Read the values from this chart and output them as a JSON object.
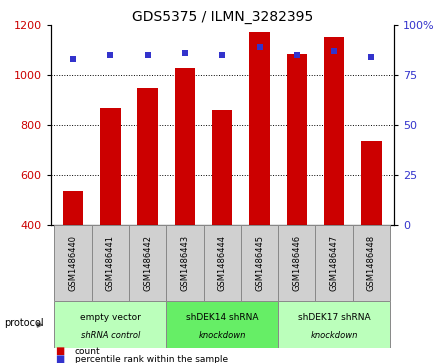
{
  "title": "GDS5375 / ILMN_3282395",
  "samples": [
    "GSM1486440",
    "GSM1486441",
    "GSM1486442",
    "GSM1486443",
    "GSM1486444",
    "GSM1486445",
    "GSM1486446",
    "GSM1486447",
    "GSM1486448"
  ],
  "counts": [
    535,
    868,
    950,
    1030,
    860,
    1175,
    1085,
    1155,
    735
  ],
  "percentiles": [
    83,
    85,
    85,
    86,
    85,
    89,
    85,
    87,
    84
  ],
  "ylim_left": [
    400,
    1200
  ],
  "ylim_right": [
    0,
    100
  ],
  "yticks_left": [
    400,
    600,
    800,
    1000,
    1200
  ],
  "yticks_right": [
    0,
    25,
    50,
    75,
    100
  ],
  "bar_color": "#cc0000",
  "dot_color": "#3333cc",
  "bar_bottom": 400,
  "bar_width": 0.55,
  "groups": [
    {
      "label": "empty vector\nshRNA control",
      "start": 0,
      "end": 3,
      "color": "#bbffbb"
    },
    {
      "label": "shDEK14 shRNA\nknockdown",
      "start": 3,
      "end": 6,
      "color": "#66ee66"
    },
    {
      "label": "shDEK17 shRNA\nknockdown",
      "start": 6,
      "end": 9,
      "color": "#bbffbb"
    }
  ],
  "sample_box_color": "#d0d0d0",
  "protocol_label": "protocol",
  "legend_count": "count",
  "legend_percentile": "percentile rank within the sample",
  "background_color": "#ffffff",
  "tick_label_color_left": "#cc0000",
  "tick_label_color_right": "#3333cc",
  "grid_lines": [
    600,
    800,
    1000
  ],
  "title_fontsize": 10,
  "tick_fontsize": 8,
  "label_fontsize": 7,
  "sample_fontsize": 6
}
